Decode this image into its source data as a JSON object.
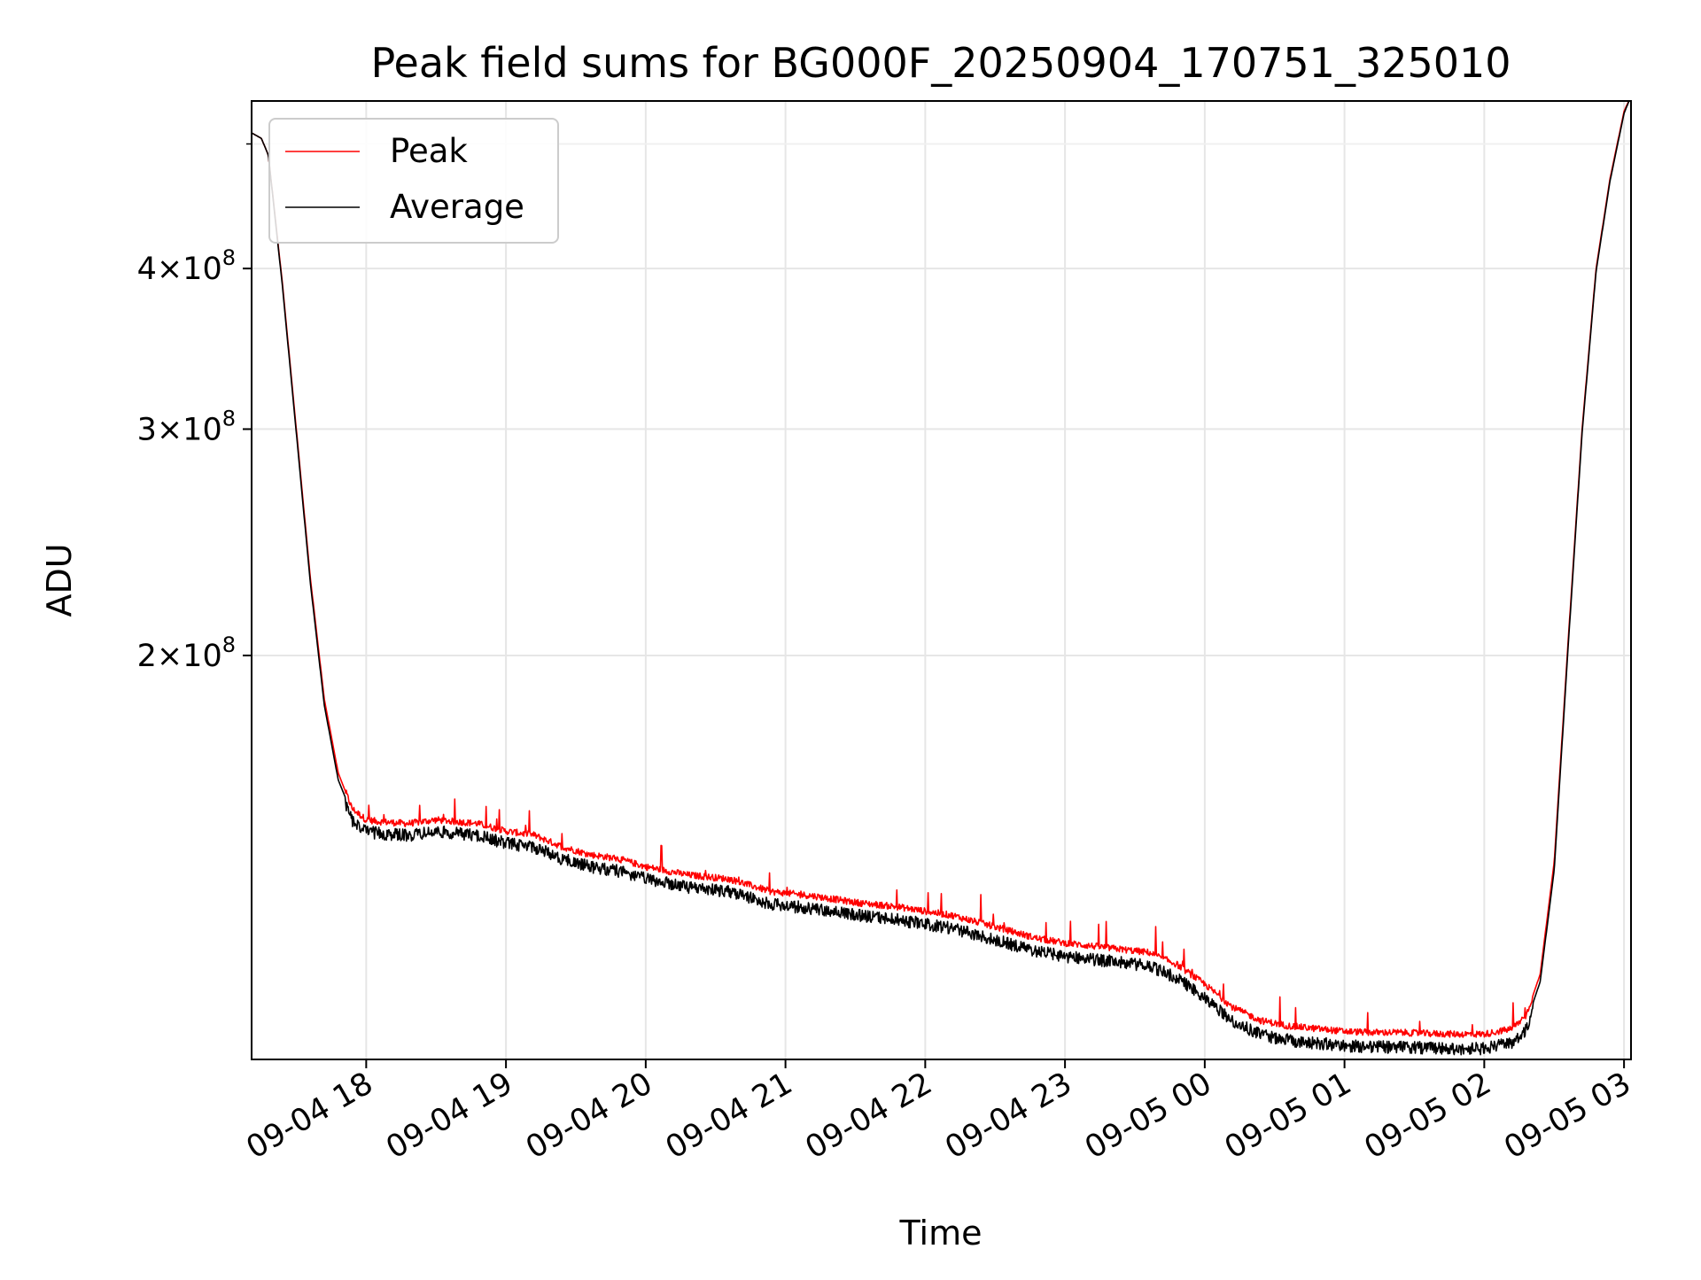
{
  "chart_data": {
    "type": "line",
    "title": "Peak field sums for BG000F_20250904_170751_325010",
    "xlabel": "Time",
    "ylabel": "ADU",
    "y_scale": "log",
    "grid": true,
    "legend_position": "top-left",
    "x_range_hours": [
      17.18,
      27.05
    ],
    "ylim": [
      97000000,
      540000000
    ],
    "x_ticks": [
      {
        "hour": 18,
        "label": "09-04 18"
      },
      {
        "hour": 19,
        "label": "09-04 19"
      },
      {
        "hour": 20,
        "label": "09-04 20"
      },
      {
        "hour": 21,
        "label": "09-04 21"
      },
      {
        "hour": 22,
        "label": "09-04 22"
      },
      {
        "hour": 23,
        "label": "09-04 23"
      },
      {
        "hour": 24,
        "label": "09-05 00"
      },
      {
        "hour": 25,
        "label": "09-05 01"
      },
      {
        "hour": 26,
        "label": "09-05 02"
      },
      {
        "hour": 27,
        "label": "09-05 03"
      }
    ],
    "y_ticks": [
      {
        "value": 200000000,
        "mantissa": "2",
        "exp": "8"
      },
      {
        "value": 300000000,
        "mantissa": "3",
        "exp": "8"
      },
      {
        "value": 400000000,
        "mantissa": "4",
        "exp": "8"
      }
    ],
    "series": [
      {
        "name": "Peak",
        "color": "#ff0000",
        "x": [
          17.18,
          17.25,
          17.3,
          17.4,
          17.5,
          17.6,
          17.7,
          17.8,
          17.9,
          18.0,
          18.1,
          18.3,
          18.5,
          18.8,
          19.0,
          19.2,
          19.4,
          19.6,
          19.8,
          20.0,
          20.3,
          20.6,
          20.9,
          21.2,
          21.5,
          21.8,
          22.0,
          22.2,
          22.5,
          22.8,
          23.0,
          23.3,
          23.6,
          23.8,
          24.0,
          24.2,
          24.4,
          24.6,
          24.8,
          25.0,
          25.2,
          25.4,
          25.6,
          25.8,
          26.0,
          26.2,
          26.3,
          26.4,
          26.5,
          26.6,
          26.7,
          26.8,
          26.9,
          27.0,
          27.05
        ],
        "values": [
          510000000,
          505000000,
          490000000,
          390000000,
          300000000,
          230000000,
          185000000,
          162000000,
          152000000,
          149000000,
          148500000,
          148000000,
          149000000,
          148000000,
          146000000,
          145000000,
          142000000,
          140000000,
          139000000,
          137000000,
          135000000,
          134000000,
          131000000,
          130000000,
          128500000,
          127500000,
          126500000,
          125500000,
          123000000,
          120500000,
          119500000,
          118500000,
          117500000,
          115000000,
          111000000,
          106500000,
          104000000,
          103000000,
          102500000,
          102000000,
          101800000,
          101800000,
          101600000,
          101500000,
          101500000,
          102500000,
          105000000,
          113000000,
          138000000,
          205000000,
          300000000,
          400000000,
          470000000,
          530000000,
          545000000
        ]
      },
      {
        "name": "Average",
        "color": "#000000",
        "x": [
          17.18,
          17.25,
          17.3,
          17.4,
          17.5,
          17.6,
          17.7,
          17.8,
          17.9,
          18.0,
          18.1,
          18.3,
          18.5,
          18.8,
          19.0,
          19.2,
          19.4,
          19.6,
          19.8,
          20.0,
          20.3,
          20.6,
          20.9,
          21.2,
          21.5,
          21.8,
          22.0,
          22.2,
          22.5,
          22.8,
          23.0,
          23.3,
          23.6,
          23.8,
          24.0,
          24.2,
          24.4,
          24.6,
          24.8,
          25.0,
          25.2,
          25.4,
          25.6,
          25.8,
          26.0,
          26.2,
          26.3,
          26.4,
          26.5,
          26.6,
          26.7,
          26.8,
          26.9,
          27.0,
          27.05
        ],
        "values": [
          510000000,
          505000000,
          490000000,
          388000000,
          298000000,
          228000000,
          183000000,
          160000000,
          150500000,
          147500000,
          147000000,
          146500000,
          147500000,
          146500000,
          144500000,
          143500000,
          140500000,
          138500000,
          137500000,
          135500000,
          133500000,
          132500000,
          129500000,
          128500000,
          127000000,
          126000000,
          125000000,
          124000000,
          121500000,
          119000000,
          118000000,
          117000000,
          116000000,
          113500000,
          109500000,
          105000000,
          102500000,
          101500000,
          101000000,
          100500000,
          100300000,
          100300000,
          100100000,
          100000000,
          100000000,
          101000000,
          103500000,
          111500000,
          136000000,
          203000000,
          298000000,
          398000000,
          468000000,
          528000000,
          545000000
        ]
      }
    ]
  }
}
